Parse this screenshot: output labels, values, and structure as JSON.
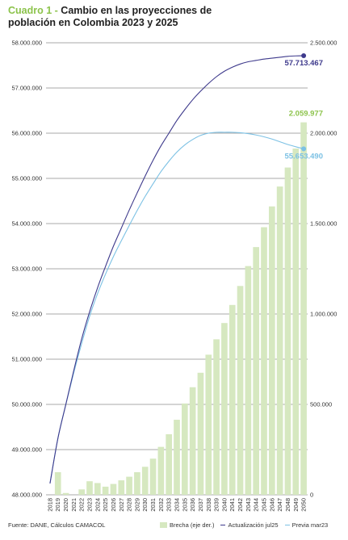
{
  "title": {
    "lead": "Cuadro 1 -",
    "text": "Cambio en las proyecciones de población en Colombia 2023 y 2025"
  },
  "source": "Fuente: DANE, Cálculos CAMACOL",
  "legend": {
    "bars": "Brecha (eje der.)",
    "line_new": "Actualización jul25",
    "line_old": "Previa mar23"
  },
  "colors": {
    "bars": "#d6e8c0",
    "line_new": "#3e3a8c",
    "line_old": "#7cc1e4",
    "ann_bar": "#8cc34b",
    "gridline": "#555555"
  },
  "chart_data": {
    "type": "bar",
    "categories": [
      "2018",
      "2019",
      "2020",
      "2021",
      "2022",
      "2023",
      "2024",
      "2025",
      "2026",
      "2027",
      "2028",
      "2029",
      "2030",
      "2031",
      "2032",
      "2033",
      "2034",
      "2035",
      "2036",
      "2037",
      "2038",
      "2039",
      "2040",
      "2041",
      "2042",
      "2043",
      "2044",
      "2045",
      "2046",
      "2047",
      "2048",
      "2049",
      "2050"
    ],
    "left_axis": {
      "ylim": [
        48000000,
        58000000
      ],
      "ticks": [
        "48.000.000",
        "49.000.000",
        "50.000.000",
        "51.000.000",
        "52.000.000",
        "53.000.000",
        "54.000.000",
        "55.000.000",
        "56.000.000",
        "57.000.000",
        "58.000.000"
      ]
    },
    "right_axis": {
      "ylim": [
        0,
        2500000
      ],
      "ticks": [
        "0",
        "500.000",
        "1.000.000",
        "1.500.000",
        "2.000.000",
        "2.500.000"
      ]
    },
    "series": [
      {
        "name": "Brecha (eje der.)",
        "type": "bar",
        "axis": "right",
        "values": [
          0,
          125000,
          10000,
          0,
          30000,
          75000,
          65000,
          45000,
          60000,
          80000,
          100000,
          125000,
          155000,
          200000,
          265000,
          335000,
          415000,
          505000,
          595000,
          675000,
          775000,
          860000,
          950000,
          1050000,
          1155000,
          1265000,
          1370000,
          1480000,
          1595000,
          1705000,
          1810000,
          1915000,
          2059977
        ]
      },
      {
        "name": "Actualización jul25",
        "type": "line",
        "axis": "left",
        "values": [
          48250000,
          49250000,
          50000000,
          50750000,
          51450000,
          52050000,
          52580000,
          53050000,
          53500000,
          53900000,
          54300000,
          54680000,
          55050000,
          55400000,
          55720000,
          56000000,
          56280000,
          56520000,
          56740000,
          56930000,
          57100000,
          57250000,
          57370000,
          57460000,
          57530000,
          57580000,
          57610000,
          57640000,
          57660000,
          57680000,
          57700000,
          57710000,
          57713467
        ]
      },
      {
        "name": "Previa mar23",
        "type": "line",
        "axis": "left",
        "values": [
          48250000,
          49250000,
          50000000,
          50700000,
          51350000,
          51950000,
          52450000,
          52880000,
          53270000,
          53620000,
          53960000,
          54290000,
          54600000,
          54880000,
          55150000,
          55380000,
          55580000,
          55740000,
          55860000,
          55950000,
          56000000,
          56020000,
          56020000,
          56020000,
          56010000,
          55990000,
          55960000,
          55920000,
          55870000,
          55810000,
          55750000,
          55700000,
          55653490
        ]
      }
    ],
    "annotations": [
      {
        "label": "57.713.467",
        "series": "Actualización jul25"
      },
      {
        "label": "2.059.977",
        "series": "Brecha (eje der.)"
      },
      {
        "label": "55.653.490",
        "series": "Previa mar23"
      }
    ]
  }
}
